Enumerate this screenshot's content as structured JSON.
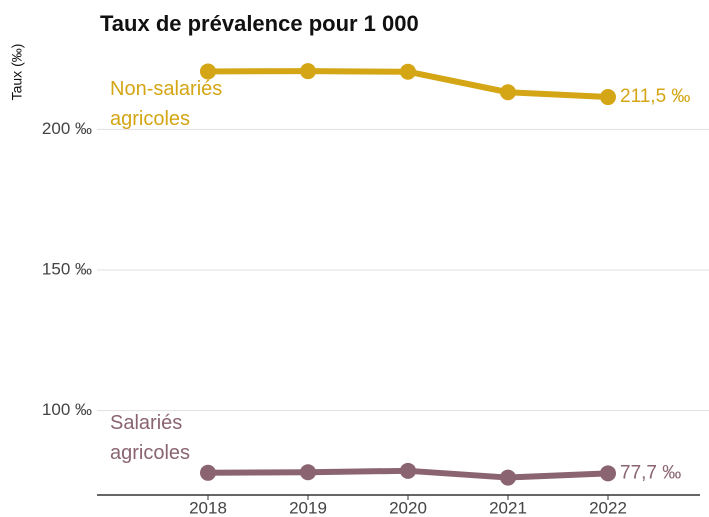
{
  "chart_data": {
    "type": "line",
    "title": "Taux de prévalence pour 1 000",
    "y_label": "Taux (‰)",
    "x": [
      2018,
      2019,
      2020,
      2021,
      2022
    ],
    "xlim": [
      2016.89,
      2022.92
    ],
    "xticks": [
      2018,
      2019,
      2020,
      2021,
      2022
    ],
    "ylim": [
      70,
      230
    ],
    "yticks": [
      {
        "value": 100,
        "label": "100 ‰"
      },
      {
        "value": 150,
        "label": "150 ‰"
      },
      {
        "value": 200,
        "label": "200 ‰"
      }
    ],
    "grid": true,
    "series": [
      {
        "name": "Non-salariés agricoles",
        "color": "#d4a514",
        "values": [
          220.6,
          220.7,
          220.5,
          213.2,
          211.5
        ],
        "value_labels": [
          null,
          null,
          null,
          null,
          "211,5 ‰"
        ]
      },
      {
        "name": "Salariés agricoles",
        "color": "#8a6470",
        "values": [
          77.9,
          78.1,
          78.6,
          76.2,
          77.7
        ],
        "value_labels": [
          null,
          null,
          null,
          null,
          "77,7 ‰"
        ]
      }
    ]
  }
}
